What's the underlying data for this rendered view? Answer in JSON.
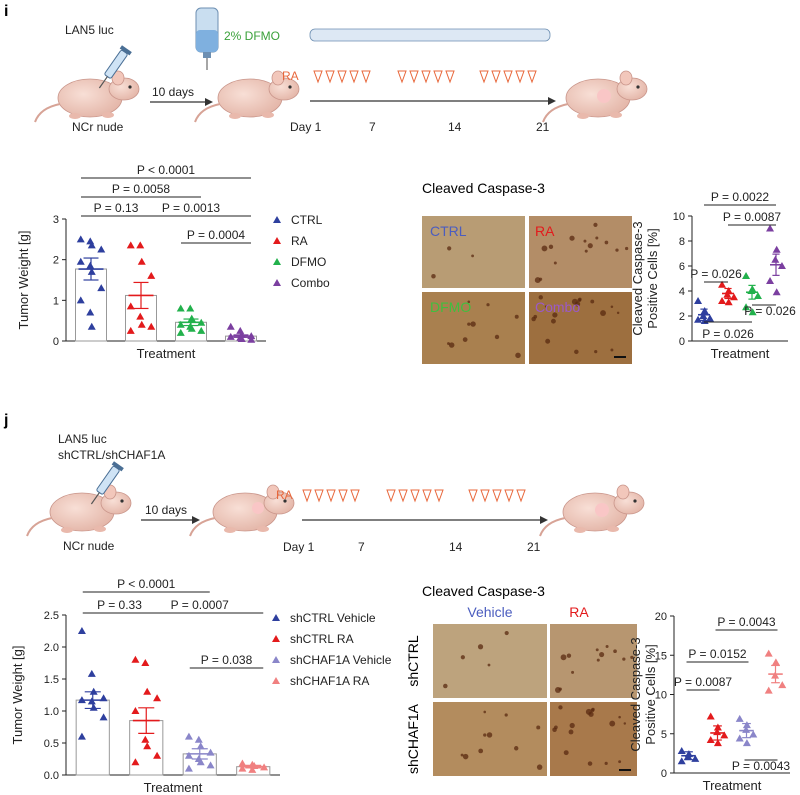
{
  "panel_i": {
    "letter": "i",
    "schematic": {
      "cell_line": "LAN5 luc",
      "mouse": "NCr nude",
      "wait": "10 days",
      "drug": "2% DFMO",
      "ra": "RA",
      "days": [
        "Day 1",
        "7",
        "14",
        "21"
      ]
    },
    "micro_title": "Cleaved Caspase-3",
    "micro_labels": [
      "CTRL",
      "RA",
      "DFMO",
      "Combo"
    ]
  },
  "panel_j": {
    "letter": "j",
    "schematic": {
      "cell_line": "LAN5 luc",
      "construct": "shCTRL/shCHAF1A",
      "mouse": "NCr nude",
      "wait": "10 days",
      "ra": "RA",
      "days": [
        "Day 1",
        "7",
        "14",
        "21"
      ]
    },
    "micro_title": "Cleaved Caspase-3",
    "micro_col_labels": [
      "Vehicle",
      "RA"
    ],
    "micro_row_labels": [
      "shCTRL",
      "shCHAF1A"
    ]
  },
  "colors": {
    "ctrl": "#2e3f9e",
    "ra": "#e31a1c",
    "dfmo": "#22b14c",
    "combo": "#7b3fa0",
    "shctrl_veh": "#2e3f9e",
    "shctrl_ra": "#e31a1c",
    "shchaf_veh": "#8a86c9",
    "shchaf_ra": "#f08080",
    "schematic_line": "#555555",
    "dfmo_bar": "#dde8f4"
  },
  "chart_data": [
    {
      "id": "i_weight",
      "type": "bar",
      "xlabel": "Treatment",
      "ylabel": "Tumor Weight [g]",
      "ylim": [
        0,
        3
      ],
      "yticks": [
        "0",
        "1",
        "2",
        "3"
      ],
      "legend": [
        "CTRL",
        "RA",
        "DFMO",
        "Combo"
      ],
      "legend_position": "right",
      "categories": [
        "CTRL",
        "RA",
        "DFMO",
        "Combo"
      ],
      "means": [
        1.77,
        1.12,
        0.46,
        0.12
      ],
      "sem": [
        0.27,
        0.32,
        0.08,
        0.03
      ],
      "points": [
        [
          2.5,
          2.45,
          2.35,
          2.25,
          1.95,
          1.85,
          1.7,
          1.3,
          1.0,
          0.7,
          0.35
        ],
        [
          2.35,
          2.35,
          1.95,
          1.6,
          0.85,
          0.6,
          0.4,
          0.35,
          0.25
        ],
        [
          0.8,
          0.8,
          0.55,
          0.45,
          0.4,
          0.35,
          0.3,
          0.25,
          0.2
        ],
        [
          0.35,
          0.25,
          0.15,
          0.12,
          0.1,
          0.08,
          0.05,
          0.03
        ]
      ],
      "comparisons": [
        "P < 0.0001",
        "P = 0.0058",
        "P = 0.13",
        "P = 0.0013",
        "P = 0.0004"
      ]
    },
    {
      "id": "i_casp",
      "type": "scatter",
      "xlabel": "Treatment",
      "ylabel": "Cleaved Caspase-3 Positive Cells [%]",
      "ylim": [
        0,
        10
      ],
      "yticks": [
        "0",
        "2",
        "4",
        "6",
        "8",
        "10"
      ],
      "categories": [
        "CTRL",
        "RA",
        "DFMO",
        "Combo"
      ],
      "means": [
        2.1,
        3.8,
        3.9,
        6.1
      ],
      "sem": [
        0.45,
        0.4,
        0.55,
        0.85
      ],
      "points": [
        [
          3.2,
          2.4,
          2.0,
          1.8,
          1.7,
          1.6
        ],
        [
          4.5,
          4.0,
          3.7,
          3.5,
          3.2,
          3.1
        ],
        [
          5.2,
          4.1,
          4.0,
          3.6,
          2.7,
          2.3
        ],
        [
          9.0,
          7.3,
          6.5,
          6.0,
          4.8,
          3.9
        ]
      ],
      "comparisons": [
        "P = 0.0022",
        "P = 0.0087",
        "P = 0.026",
        "P = 0.026",
        "P = 0.026"
      ]
    },
    {
      "id": "j_weight",
      "type": "bar",
      "xlabel": "Treatment",
      "ylabel": "Tumor Weight [g]",
      "ylim": [
        0,
        2.5
      ],
      "yticks": [
        "0.0",
        "0.5",
        "1.0",
        "1.5",
        "2.0",
        "2.5"
      ],
      "legend": [
        "shCTRL Vehicle",
        "shCTRL RA",
        "shCHAF1A Vehicle",
        "shCHAF1A RA"
      ],
      "legend_position": "right",
      "categories": [
        "shCTRL Vehicle",
        "shCTRL RA",
        "shCHAF1A Vehicle",
        "shCHAF1A RA"
      ],
      "means": [
        1.17,
        0.85,
        0.33,
        0.13
      ],
      "sem": [
        0.13,
        0.2,
        0.08,
        0.02
      ],
      "points": [
        [
          2.25,
          1.58,
          1.3,
          1.2,
          1.17,
          1.15,
          1.05,
          0.9,
          0.6
        ],
        [
          1.8,
          1.75,
          1.3,
          1.2,
          1.0,
          0.55,
          0.45,
          0.3,
          0.2
        ],
        [
          0.6,
          0.55,
          0.45,
          0.35,
          0.3,
          0.25,
          0.2,
          0.15,
          0.1
        ],
        [
          0.18,
          0.16,
          0.14,
          0.12,
          0.1,
          0.08
        ]
      ],
      "comparisons": [
        "P < 0.0001",
        "P = 0.33",
        "P = 0.0007",
        "P = 0.038"
      ]
    },
    {
      "id": "j_casp",
      "type": "scatter",
      "xlabel": "Treatment",
      "ylabel": "Cleaved Caspase-3 Positive Cells [%]",
      "ylim": [
        0,
        20
      ],
      "yticks": [
        "0",
        "5",
        "10",
        "15",
        "20"
      ],
      "categories": [
        "shCTRL Vehicle",
        "shCTRL RA",
        "shCHAF1A Vehicle",
        "shCHAF1A RA"
      ],
      "means": [
        2.2,
        5.1,
        5.4,
        12.6
      ],
      "sem": [
        0.5,
        0.9,
        0.9,
        1.1
      ],
      "points": [
        [
          2.8,
          2.4,
          2.1,
          1.8,
          1.5
        ],
        [
          7.2,
          5.8,
          5.2,
          4.8,
          4.2,
          3.8
        ],
        [
          6.9,
          6.1,
          5.5,
          4.9,
          4.4,
          3.8
        ],
        [
          15.2,
          14.1,
          12.4,
          11.2,
          10.5
        ]
      ],
      "comparisons": [
        "P = 0.0043",
        "P = 0.0152",
        "P = 0.0087",
        "P = 0.0043"
      ]
    }
  ]
}
